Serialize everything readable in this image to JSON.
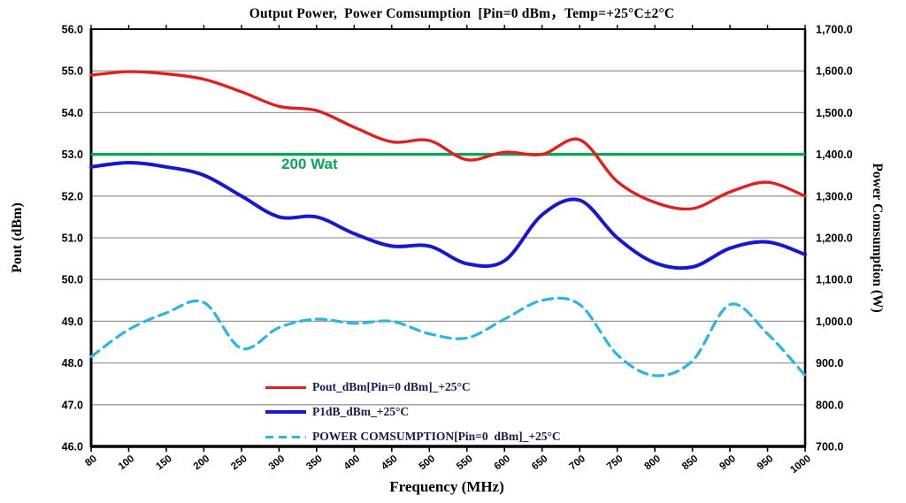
{
  "chart_data": {
    "type": "line",
    "title": "Output Power,  Power Comsumption  [Pin=0 dBm，Temp=+25°C±2°C",
    "x_label": "Frequency (MHz)",
    "x_categories": [
      "80",
      "100",
      "150",
      "200",
      "250",
      "300",
      "350",
      "400",
      "450",
      "500",
      "550",
      "600",
      "650",
      "700",
      "750",
      "800",
      "850",
      "900",
      "950",
      "1000"
    ],
    "y_left": {
      "label": "Pout (dBm)",
      "min": 46.0,
      "max": 56.0,
      "tick_step": 1.0,
      "tick_labels": [
        "56.0",
        "55.0",
        "54.0",
        "53.0",
        "52.0",
        "51.0",
        "50.0",
        "49.0",
        "48.0",
        "47.0",
        "46.0"
      ]
    },
    "y_right": {
      "label": "Power Comsumption (W)",
      "min": 700.0,
      "max": 1700.0,
      "tick_step": 100.0,
      "tick_labels": [
        "1,700.0",
        "1,600.0",
        "1,500.0",
        "1,400.0",
        "1,300.0",
        "1,200.0",
        "1,100.0",
        "1,000.0",
        "900.0",
        "800.0",
        "700.0"
      ]
    },
    "series": [
      {
        "name": "Pout_dBm[Pin=0 dBm]_+25°C",
        "axis": "left",
        "color": "#e02020",
        "line_style": "solid",
        "values": [
          54.9,
          54.98,
          54.93,
          54.8,
          54.5,
          54.15,
          54.05,
          53.65,
          53.3,
          53.33,
          52.87,
          53.05,
          53.0,
          53.35,
          52.35,
          51.85,
          51.7,
          52.1,
          52.33,
          52.0
        ]
      },
      {
        "name": "P1dB_dBm_+25°C",
        "axis": "left",
        "color": "#1717cf",
        "line_style": "solid",
        "values": [
          52.7,
          52.8,
          52.7,
          52.5,
          52.0,
          51.5,
          51.5,
          51.1,
          50.8,
          50.8,
          50.38,
          50.45,
          51.55,
          51.9,
          51.0,
          50.4,
          50.3,
          50.75,
          50.9,
          50.6
        ]
      },
      {
        "name": "POWER COMSUMPTION[Pin=0  dBm]_+25°C",
        "axis": "right",
        "color": "#2ab4e8",
        "line_style": "dashed",
        "values": [
          915,
          980,
          1020,
          1045,
          935,
          985,
          1005,
          995,
          1000,
          970,
          960,
          1005,
          1050,
          1040,
          920,
          870,
          905,
          1040,
          970,
          870
        ]
      }
    ],
    "reference_line": {
      "label": "200 Wat",
      "color": "#0ca35a",
      "y_left_value": 53.0,
      "y_right_value_w": 1400
    },
    "grid": "horizontal",
    "grid_color": "#999999",
    "legend_position": "inside-bottom-center"
  }
}
